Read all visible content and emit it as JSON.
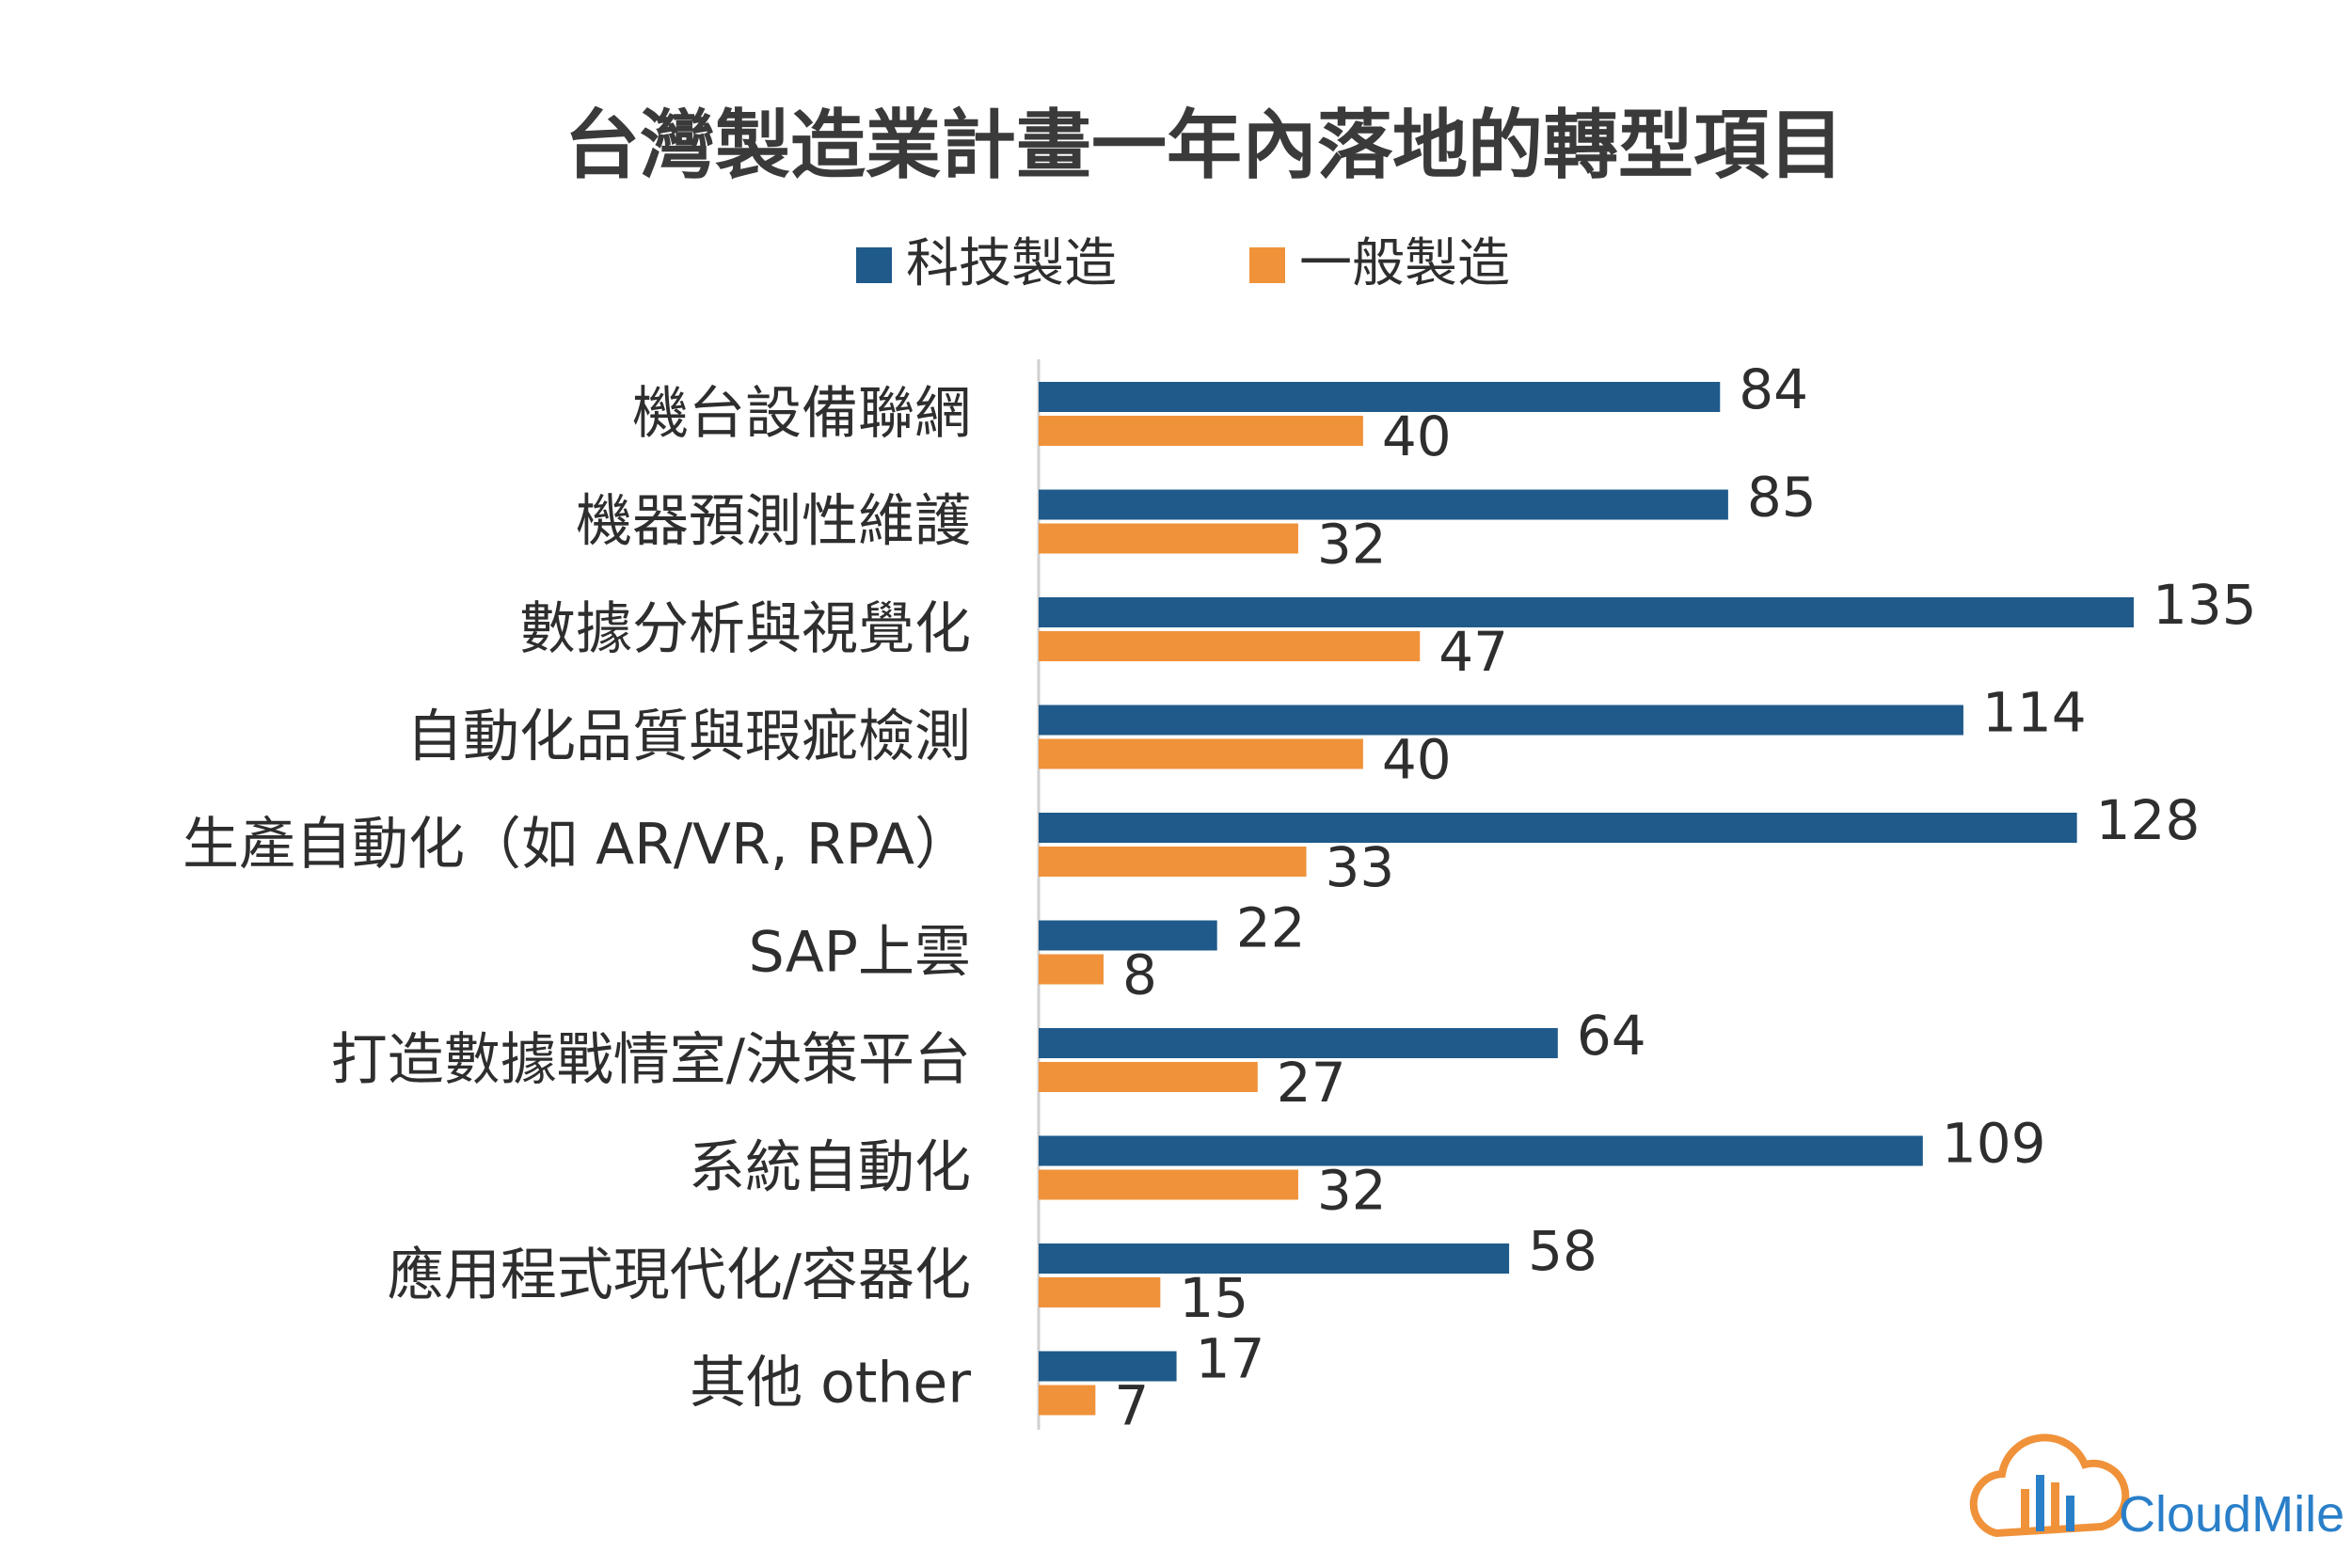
{
  "chart_data": {
    "type": "bar",
    "orientation": "horizontal",
    "title": "台灣製造業計畫一年內落地的轉型項目",
    "categories": [
      "機台設備聯網",
      "機器預測性維護",
      "數據分析與視覺化",
      "自動化品質與瑕疵檢測",
      "生產自動化（如 AR/VR, RPA）",
      "SAP上雲",
      "打造數據戰情室/決策平台",
      "系統自動化",
      "應用程式現代化/容器化",
      "其他 other"
    ],
    "series": [
      {
        "name": "科技製造",
        "color": "#1f5a8a",
        "values": [
          84,
          85,
          135,
          114,
          128,
          22,
          64,
          109,
          58,
          17
        ]
      },
      {
        "name": "一般製造",
        "color": "#f0923a",
        "values": [
          40,
          32,
          47,
          40,
          33,
          8,
          27,
          32,
          15,
          7
        ]
      }
    ],
    "xlim": [
      0,
      135
    ],
    "grid": false,
    "legend_position": "top-center",
    "data_labels": true
  },
  "brand": {
    "name": "CloudMile",
    "color": "#f0923a",
    "accent": "#2a7fc9",
    "icon": "cloud-logo-icon"
  }
}
